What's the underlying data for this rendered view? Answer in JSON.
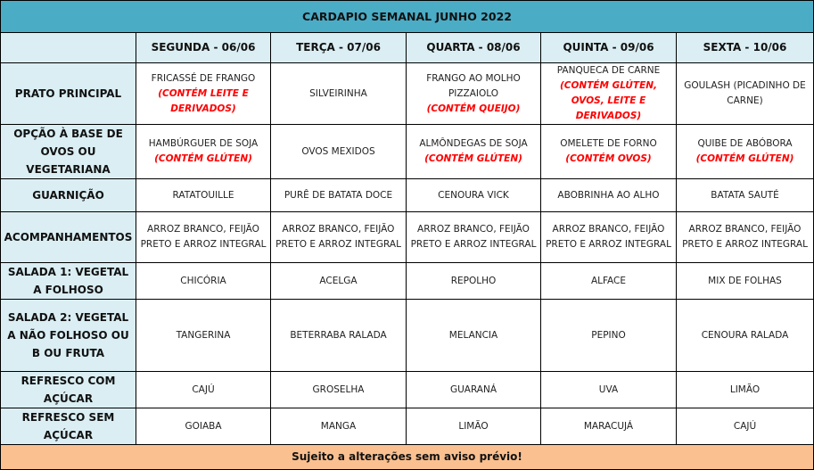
{
  "title": "CARDAPIO SEMANAL JUNHO 2022",
  "days": [
    "SEGUNDA - 06/06",
    "TERÇA - 07/06",
    "QUARTA - 08/06",
    "QUINTA - 09/06",
    "SEXTA - 10/06"
  ],
  "rows": [
    {
      "label": "PRATO PRINCIPAL",
      "h": 60,
      "cells": [
        {
          "text": "FRICASSÉ DE FRANGO",
          "note": "(CONTÉM LEITE E DERIVADOS)"
        },
        {
          "text": "SILVEIRINHA"
        },
        {
          "text": "FRANGO AO MOLHO PIZZAIOLO",
          "note": "(CONTÉM QUEIJO)"
        },
        {
          "text": "PANQUECA DE CARNE",
          "note": "(CONTÉM GLÚTEN, OVOS, LEITE E DERIVADOS)"
        },
        {
          "text": "GOULASH (PICADINHO DE CARNE)"
        }
      ]
    },
    {
      "label": "OPÇÃO À BASE DE OVOS OU VEGETARIANA",
      "h": 60,
      "cells": [
        {
          "text": "HAMBÚRGUER DE SOJA",
          "note": "(CONTÉM GLÚTEN)"
        },
        {
          "text": "OVOS MEXIDOS"
        },
        {
          "text": "ALMÔNDEGAS DE SOJA",
          "note": "(CONTÉM GLÚTEN)"
        },
        {
          "text": "OMELETE DE FORNO",
          "note": "(CONTÉM OVOS)"
        },
        {
          "text": "QUIBE DE ABÓBORA",
          "note": "(CONTÉM GLÚTEN)"
        }
      ]
    },
    {
      "label": "GUARNIÇÃO",
      "h": 37,
      "cells": [
        {
          "text": "RATATOUILLE"
        },
        {
          "text": "PURÊ DE BATATA DOCE"
        },
        {
          "text": "CENOURA VICK"
        },
        {
          "text": "ABOBRINHA AO ALHO"
        },
        {
          "text": "BATATA SAUTÉ"
        }
      ]
    },
    {
      "label": "ACOMPANHAMENTOS",
      "h": 57,
      "cells": [
        {
          "text": "ARROZ BRANCO, FEIJÃO PRETO E ARROZ INTEGRAL"
        },
        {
          "text": "ARROZ BRANCO, FEIJÃO PRETO E ARROZ INTEGRAL"
        },
        {
          "text": "ARROZ BRANCO, FEIJÃO PRETO E ARROZ INTEGRAL"
        },
        {
          "text": "ARROZ BRANCO, FEIJÃO PRETO E ARROZ INTEGRAL"
        },
        {
          "text": "ARROZ BRANCO, FEIJÃO PRETO E ARROZ INTEGRAL"
        }
      ]
    },
    {
      "label": "SALADA 1: VEGETAL A FOLHOSO",
      "h": 39,
      "cells": [
        {
          "text": "CHICÓRIA"
        },
        {
          "text": "ACELGA"
        },
        {
          "text": "REPOLHO"
        },
        {
          "text": "ALFACE"
        },
        {
          "text": "MIX DE FOLHAS"
        }
      ]
    },
    {
      "label": "SALADA 2: VEGETAL A NÃO FOLHOSO OU B OU FRUTA",
      "h": 81,
      "cells": [
        {
          "text": "TANGERINA"
        },
        {
          "text": "BETERRABA RALADA"
        },
        {
          "text": "MELANCIA"
        },
        {
          "text": "PEPINO"
        },
        {
          "text": "CENOURA RALADA"
        }
      ]
    },
    {
      "label": "REFRESCO COM AÇÚCAR",
      "h": 39,
      "cells": [
        {
          "text": "CAJÚ"
        },
        {
          "text": "GROSELHA"
        },
        {
          "text": "GUARANÁ"
        },
        {
          "text": "UVA"
        },
        {
          "text": "LIMÃO"
        }
      ]
    },
    {
      "label": "REFRESCO SEM AÇÚCAR",
      "h": 35,
      "cells": [
        {
          "text": "GOIABA"
        },
        {
          "text": "MANGA"
        },
        {
          "text": "LIMÃO"
        },
        {
          "text": "MARACUJÁ"
        },
        {
          "text": "CAJÚ"
        }
      ]
    }
  ],
  "footer": "Sujeito a alterações sem aviso prévio!",
  "colors": {
    "title_bg": "#4bacc6",
    "header_bg": "#daeef3",
    "footer_bg": "#fac090",
    "allergen": "#ff0000"
  }
}
